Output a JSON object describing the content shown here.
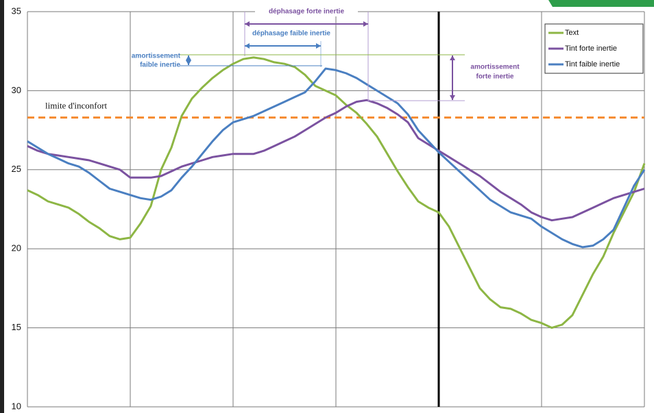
{
  "chart_data": {
    "type": "line",
    "ylim": [
      10,
      35
    ],
    "yticks": [
      10,
      15,
      20,
      25,
      30,
      35
    ],
    "xlim": [
      0,
      60
    ],
    "xticks": [
      0,
      10,
      20,
      30,
      40,
      50,
      60
    ],
    "thick_gridline_x": 40,
    "grid": true,
    "legend_position": "upper right",
    "series": [
      {
        "name": "Text",
        "color": "#8db644",
        "values": [
          23.7,
          23.4,
          23.0,
          22.8,
          22.6,
          22.2,
          21.7,
          21.3,
          20.8,
          20.6,
          20.7,
          21.6,
          22.7,
          25.0,
          26.4,
          28.4,
          29.5,
          30.2,
          30.8,
          31.3,
          31.7,
          32.0,
          32.1,
          32.0,
          31.8,
          31.7,
          31.5,
          31.0,
          30.3,
          30.0,
          29.7,
          29.1,
          28.6,
          27.9,
          27.1,
          26.0,
          24.9,
          23.9,
          23.0,
          22.6,
          22.3,
          21.4,
          20.1,
          18.8,
          17.5,
          16.8,
          16.3,
          16.2,
          15.9,
          15.5,
          15.3,
          15.0,
          15.2,
          15.8,
          17.1,
          18.4,
          19.5,
          21.0,
          22.3,
          23.6,
          25.4
        ]
      },
      {
        "name": "Tint forte inertie",
        "color": "#7b52a0",
        "values": [
          26.5,
          26.2,
          26.0,
          25.9,
          25.8,
          25.7,
          25.6,
          25.4,
          25.2,
          25.0,
          24.5,
          24.5,
          24.5,
          24.6,
          24.9,
          25.2,
          25.4,
          25.6,
          25.8,
          25.9,
          26.0,
          26.0,
          26.0,
          26.2,
          26.5,
          26.8,
          27.1,
          27.5,
          27.9,
          28.3,
          28.6,
          29.0,
          29.3,
          29.4,
          29.2,
          28.9,
          28.5,
          28.0,
          27.0,
          26.6,
          26.2,
          25.8,
          25.4,
          25.0,
          24.6,
          24.1,
          23.6,
          23.2,
          22.8,
          22.3,
          22.0,
          21.8,
          21.9,
          22.0,
          22.3,
          22.6,
          22.9,
          23.2,
          23.4,
          23.6,
          23.8
        ]
      },
      {
        "name": "Tint faible inertie",
        "color": "#4a7fc1",
        "values": [
          26.8,
          26.4,
          26.0,
          25.7,
          25.4,
          25.2,
          24.8,
          24.3,
          23.8,
          23.6,
          23.4,
          23.2,
          23.1,
          23.3,
          23.7,
          24.5,
          25.2,
          26.0,
          26.8,
          27.5,
          28.0,
          28.2,
          28.4,
          28.7,
          29.0,
          29.3,
          29.6,
          29.9,
          30.6,
          31.4,
          31.3,
          31.1,
          30.8,
          30.4,
          30.0,
          29.6,
          29.2,
          28.5,
          27.5,
          26.8,
          26.1,
          25.5,
          24.9,
          24.3,
          23.7,
          23.1,
          22.7,
          22.3,
          22.1,
          21.9,
          21.4,
          21.0,
          20.6,
          20.3,
          20.1,
          20.2,
          20.6,
          21.2,
          22.6,
          24.0,
          25.0
        ]
      }
    ],
    "threshold": {
      "value": 28.3,
      "label": "limite d'inconfort",
      "color": "#f58a2f"
    },
    "annotations": {
      "dephasage_forte": "déphasage forte inertie",
      "dephasage_faible": "déphasage faible inertie",
      "amortissement_faible": [
        "amortissement",
        "faible inertie"
      ],
      "amortissement_forte": [
        "amortissement",
        "forte inertie"
      ]
    }
  }
}
